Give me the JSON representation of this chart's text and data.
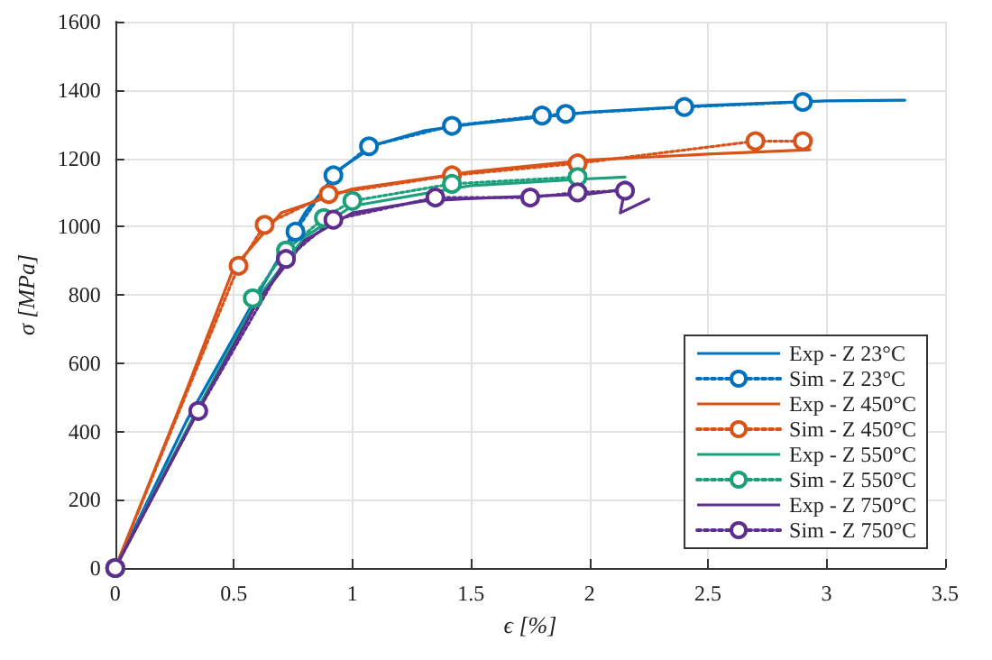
{
  "chart_data": {
    "type": "line",
    "xlabel": "ϵ [%]",
    "ylabel": "σ [MPa]",
    "xlim": [
      0,
      3.5
    ],
    "ylim": [
      0,
      1600
    ],
    "xticks": [
      0,
      0.5,
      1,
      1.5,
      2,
      2.5,
      3,
      3.5
    ],
    "yticks": [
      0,
      200,
      400,
      600,
      800,
      1000,
      1200,
      1400,
      1600
    ],
    "grid": true,
    "legend": "bottom right",
    "series": [
      {
        "name": "Exp - Z 23°C",
        "color": "#0072bd",
        "line_style": "solid",
        "marker": "none",
        "x": [
          0,
          0.3,
          0.6,
          0.8,
          0.95,
          1.1,
          1.3,
          1.5,
          2,
          2.5,
          3,
          3.33
        ],
        "values": [
          0,
          430,
          800,
          1040,
          1170,
          1240,
          1280,
          1300,
          1335,
          1355,
          1368,
          1370
        ]
      },
      {
        "name": "Sim - Z 23°C",
        "color": "#0072bd",
        "line_style": "dotted",
        "marker": "circle",
        "x": [
          0,
          0.35,
          0.72,
          0.76,
          0.92,
          1.07,
          1.42,
          1.8,
          1.9,
          2.4,
          2.9
        ],
        "values": [
          0,
          null,
          910,
          985,
          1150,
          1235,
          1295,
          1325,
          1330,
          1350,
          1365
        ]
      },
      {
        "name": "Exp - Z 450°C",
        "color": "#d95319",
        "line_style": "solid",
        "marker": "none",
        "x": [
          0,
          0.3,
          0.5,
          0.7,
          1,
          1.5,
          2,
          2.5,
          2.93
        ],
        "values": [
          0,
          520,
          880,
          1040,
          1110,
          1160,
          1195,
          1212,
          1225
        ]
      },
      {
        "name": "Sim - Z 450°C",
        "color": "#d95319",
        "line_style": "dotted",
        "marker": "circle",
        "x": [
          0,
          0.52,
          0.63,
          0.9,
          1.42,
          1.95,
          2.7,
          2.9
        ],
        "values": [
          0,
          885,
          1005,
          1095,
          1150,
          1185,
          1250,
          1250
        ]
      },
      {
        "name": "Exp - Z 550°C",
        "color": "#1aa07a",
        "line_style": "solid",
        "marker": "none",
        "x": [
          0,
          0.35,
          0.6,
          0.8,
          1,
          1.5,
          2,
          2.15
        ],
        "values": [
          0,
          470,
          790,
          970,
          1060,
          1120,
          1140,
          1145
        ]
      },
      {
        "name": "Sim - Z 550°C",
        "color": "#1aa07a",
        "line_style": "dotted",
        "marker": "circle",
        "x": [
          0,
          0.35,
          0.58,
          0.72,
          0.88,
          1,
          1.42,
          1.95
        ],
        "values": [
          0,
          null,
          790,
          930,
          1025,
          1075,
          1125,
          1145
        ]
      },
      {
        "name": "Exp - Z 750°C",
        "color": "#5e2e8e",
        "line_style": "solid",
        "marker": "none",
        "x": [
          0,
          0.35,
          0.6,
          0.8,
          1,
          1.3,
          1.6,
          2,
          2.15,
          2.13,
          2.25
        ],
        "values": [
          0,
          460,
          780,
          960,
          1040,
          1075,
          1085,
          1095,
          1110,
          1040,
          1080
        ]
      },
      {
        "name": "Sim - Z 750°C",
        "color": "#5e2e8e",
        "line_style": "dotted",
        "marker": "circle",
        "x": [
          0,
          0.35,
          0.72,
          0.92,
          1.35,
          1.75,
          1.95,
          2.15
        ],
        "values": [
          0,
          460,
          905,
          1020,
          1085,
          1085,
          1100,
          1105
        ]
      }
    ]
  }
}
